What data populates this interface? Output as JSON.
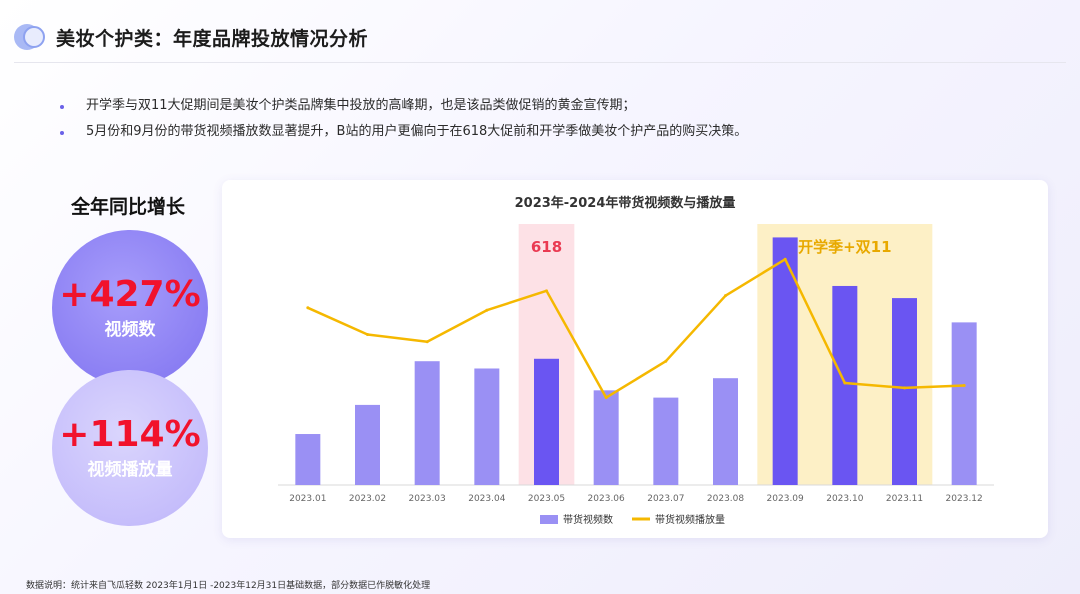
{
  "header": {
    "title": "美妆个护类：年度品牌投放情况分析"
  },
  "bullets": [
    "开学季与双11大促期间是美妆个护类品牌集中投放的高峰期，也是该品类做促销的黄金宣传期；",
    "5月份和9月份的带货视频播放数显著提升，B站的用户更偏向于在618大促前和开学季做美妆个护产品的购买决策。"
  ],
  "growth": {
    "title": "全年同比增长",
    "metrics": [
      {
        "value": "+427%",
        "label": "视频数"
      },
      {
        "value": "+114%",
        "label": "视频播放量"
      }
    ]
  },
  "colors": {
    "bar_normal": "#9a90f4",
    "bar_highlight": "#6a55f2",
    "line": "#f5b800",
    "band_618": "#fde1e6",
    "band_school": "#fdf0c6",
    "label_618": "#ea3a52",
    "label_school": "#e8a900",
    "growth_value": "#f1122c"
  },
  "chart_data": {
    "type": "bar",
    "title": "2023年-2024年带货视频数与播放量",
    "categories": [
      "2023.01",
      "2023.02",
      "2023.03",
      "2023.04",
      "2023.05",
      "2023.06",
      "2023.07",
      "2023.08",
      "2023.09",
      "2023.10",
      "2023.11",
      "2023.12"
    ],
    "series": [
      {
        "name": "带货视频数",
        "type": "bar",
        "values": [
          21,
          33,
          51,
          48,
          52,
          39,
          36,
          44,
          102,
          82,
          77,
          67
        ],
        "highlight": [
          "2023.05",
          "2023.09",
          "2023.10",
          "2023.11"
        ]
      },
      {
        "name": "带货视频播放量",
        "type": "line",
        "values": [
          73,
          62,
          59,
          72,
          80,
          36,
          51,
          78,
          93,
          42,
          40,
          41
        ]
      }
    ],
    "ylim": [
      0,
      110
    ],
    "grid": false,
    "legend": "bottom",
    "annotations": [
      {
        "label": "618",
        "category": "2023.05"
      },
      {
        "label": "开学季+双11",
        "categories": [
          "2023.09",
          "2023.10",
          "2023.11"
        ]
      }
    ]
  },
  "footnote": "数据说明：统计来自飞瓜轻数 2023年1月1日 -2023年12月31日基础数据，部分数据已作脱敏化处理"
}
